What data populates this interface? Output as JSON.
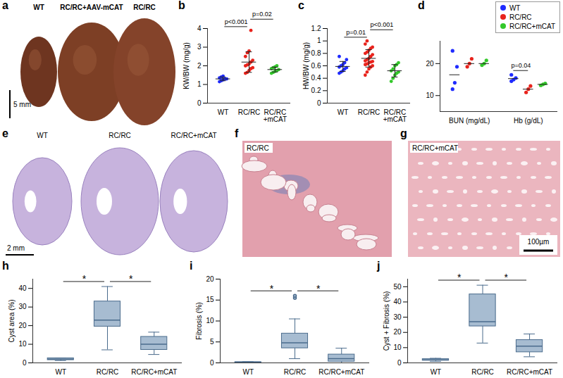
{
  "chart_data": [
    {
      "panel": "b",
      "type": "scatter",
      "ylabel": "KW/BW (mg/g)",
      "categories": [
        "WT",
        "RC/RC",
        "RC/RC +mCAT"
      ],
      "colors": [
        "#1f2bff",
        "#e8231c",
        "#33c82a"
      ],
      "values": [
        [
          1.15,
          1.2,
          1.25,
          1.3,
          1.3,
          1.35,
          1.4,
          1.45
        ],
        [
          1.6,
          1.65,
          1.75,
          1.85,
          1.9,
          2.0,
          2.05,
          2.1,
          2.2,
          2.3,
          2.5,
          2.7,
          2.8,
          3.9
        ],
        [
          1.6,
          1.65,
          1.7,
          1.75,
          1.8,
          1.85,
          1.9,
          1.95,
          2.0
        ]
      ],
      "mean": [
        1.3,
        2.2,
        1.8
      ],
      "sd": [
        0.1,
        0.55,
        0.13
      ],
      "ylim": [
        0,
        4
      ],
      "yticks": [
        0,
        1,
        2,
        3,
        4
      ],
      "annotations": [
        {
          "text": "p<0.001",
          "between": [
            "WT",
            "RC/RC"
          ]
        },
        {
          "text": "p=0.02",
          "between": [
            "RC/RC",
            "RC/RC +mCAT"
          ]
        }
      ]
    },
    {
      "panel": "c",
      "type": "scatter",
      "ylabel": "HW/BW (mg/g)",
      "categories": [
        "WT",
        "RC/RC",
        "RC/RC +mCAT"
      ],
      "colors": [
        "#1f2bff",
        "#e8231c",
        "#33c82a"
      ],
      "values": [
        [
          0.48,
          0.5,
          0.52,
          0.55,
          0.57,
          0.58,
          0.6,
          0.62,
          0.65,
          0.7,
          0.75
        ],
        [
          0.45,
          0.5,
          0.55,
          0.58,
          0.6,
          0.62,
          0.63,
          0.65,
          0.66,
          0.67,
          0.68,
          0.7,
          0.72,
          0.75,
          0.78,
          0.8,
          0.82,
          0.85,
          0.88,
          0.9,
          0.95,
          1.0
        ],
        [
          0.35,
          0.4,
          0.45,
          0.48,
          0.5,
          0.52,
          0.55,
          0.6,
          0.62,
          0.65
        ]
      ],
      "mean": [
        0.59,
        0.72,
        0.52
      ],
      "sd": [
        0.08,
        0.14,
        0.1
      ],
      "ylim": [
        0,
        1.2
      ],
      "yticks": [
        0,
        0.2,
        0.4,
        0.6,
        0.8,
        1,
        1.2
      ],
      "annotations": [
        {
          "text": "p=0.01",
          "between": [
            "WT",
            "RC/RC"
          ]
        },
        {
          "text": "p<0.001",
          "between": [
            "RC/RC",
            "RC/RC +mCAT"
          ]
        }
      ]
    },
    {
      "panel": "d",
      "type": "grouped_scatter",
      "legend": "top-right",
      "categories": [
        "BUN (mg/dL)",
        "Hb (g/dL)"
      ],
      "series": [
        {
          "name": "WT",
          "color": "#1f2bff",
          "values": [
            [
              12,
              14,
              19,
              24
            ],
            [
              14.5,
              15,
              15.5,
              16.5
            ]
          ],
          "mean": [
            16.5,
            15.3
          ]
        },
        {
          "name": "RC/RC",
          "color": "#e8231c",
          "values": [
            [
              19,
              20,
              21.5
            ],
            [
              11,
              12,
              13
            ]
          ],
          "mean": [
            20,
            12
          ]
        },
        {
          "name": "RC/RC+mCAT",
          "color": "#33c82a",
          "values": [
            [
              19.5,
              20,
              21
            ],
            [
              13.2,
              13.5,
              13.8
            ]
          ],
          "mean": [
            20,
            13.5
          ]
        }
      ],
      "ylim": [
        5,
        27
      ],
      "yticks": [
        10,
        20
      ],
      "annotations": [
        {
          "text": "p=0.04",
          "category": "Hb (g/dL)",
          "between": [
            "WT",
            "RC/RC"
          ]
        }
      ]
    },
    {
      "panel": "h",
      "type": "box",
      "ylabel": "Cyst area (%)",
      "color": "#a7bcd1",
      "categories": [
        "WT",
        "RC/RC",
        "RC/RC+mCAT"
      ],
      "boxes": [
        {
          "min": 1.2,
          "q1": 1.5,
          "median": 2,
          "q3": 2.5,
          "max": 2.6,
          "outliers": []
        },
        {
          "min": 7,
          "q1": 19.5,
          "median": 23,
          "q3": 33,
          "max": 41,
          "outliers": []
        },
        {
          "min": 4.5,
          "q1": 7,
          "median": 10,
          "q3": 14,
          "max": 16.5,
          "outliers": []
        }
      ],
      "ylim": [
        0,
        45
      ],
      "yticks": [
        0,
        10,
        20,
        30,
        40
      ],
      "annotations": [
        {
          "text": "*",
          "between": [
            "WT",
            "RC/RC"
          ]
        },
        {
          "text": "*",
          "between": [
            "RC/RC",
            "RC/RC+mCAT"
          ]
        }
      ]
    },
    {
      "panel": "i",
      "type": "box",
      "ylabel": "Fibrosis (%)",
      "color": "#a7bcd1",
      "categories": [
        "WT",
        "RC/RC",
        "RC/RC+mCAT"
      ],
      "boxes": [
        {
          "min": 0,
          "q1": 0,
          "median": 0.1,
          "q3": 0.2,
          "max": 0.3,
          "outliers": []
        },
        {
          "min": 1,
          "q1": 3.5,
          "median": 4.8,
          "q3": 7,
          "max": 10.5,
          "outliers": [
            15.5,
            16
          ]
        },
        {
          "min": 0,
          "q1": 0.3,
          "median": 1,
          "q3": 2,
          "max": 3.5,
          "outliers": []
        }
      ],
      "ylim": [
        0,
        20
      ],
      "yticks": [
        0,
        5,
        10,
        15,
        20
      ],
      "annotations": [
        {
          "text": "*",
          "between": [
            "WT",
            "RC/RC"
          ]
        },
        {
          "text": "*",
          "between": [
            "RC/RC",
            "RC/RC+mCAT"
          ]
        }
      ]
    },
    {
      "panel": "j",
      "type": "box",
      "ylabel": "Cyst + Fibrosis (%)",
      "color": "#a7bcd1",
      "categories": [
        "WT",
        "RC/RC",
        "RC/RC+mCAT"
      ],
      "boxes": [
        {
          "min": 1,
          "q1": 1.5,
          "median": 2,
          "q3": 2.5,
          "max": 3,
          "outliers": []
        },
        {
          "min": 13,
          "q1": 24,
          "median": 27,
          "q3": 45,
          "max": 51,
          "outliers": []
        },
        {
          "min": 4,
          "q1": 7,
          "median": 11,
          "q3": 15,
          "max": 19,
          "outliers": []
        }
      ],
      "ylim": [
        0,
        55
      ],
      "yticks": [
        0,
        10,
        20,
        30,
        40,
        50
      ],
      "annotations": [
        {
          "text": "*",
          "between": [
            "WT",
            "RC/RC"
          ]
        },
        {
          "text": "*",
          "between": [
            "RC/RC",
            "RC/RC+mCAT"
          ]
        }
      ]
    }
  ],
  "images": [
    {
      "panel": "a",
      "labels": [
        "WT",
        "RC/RC+AAV-mCAT",
        "RC/RC"
      ],
      "scale_bar": "5 mm"
    },
    {
      "panel": "e",
      "labels": [
        "WT",
        "RC/RC",
        "RC/RC+mCAT"
      ],
      "scale_bar": "2 mm"
    },
    {
      "panel": "f",
      "labels": [
        "RC/RC"
      ]
    },
    {
      "panel": "g",
      "labels": [
        "RC/RC+mCAT"
      ],
      "scale_bar": "100µm"
    }
  ]
}
